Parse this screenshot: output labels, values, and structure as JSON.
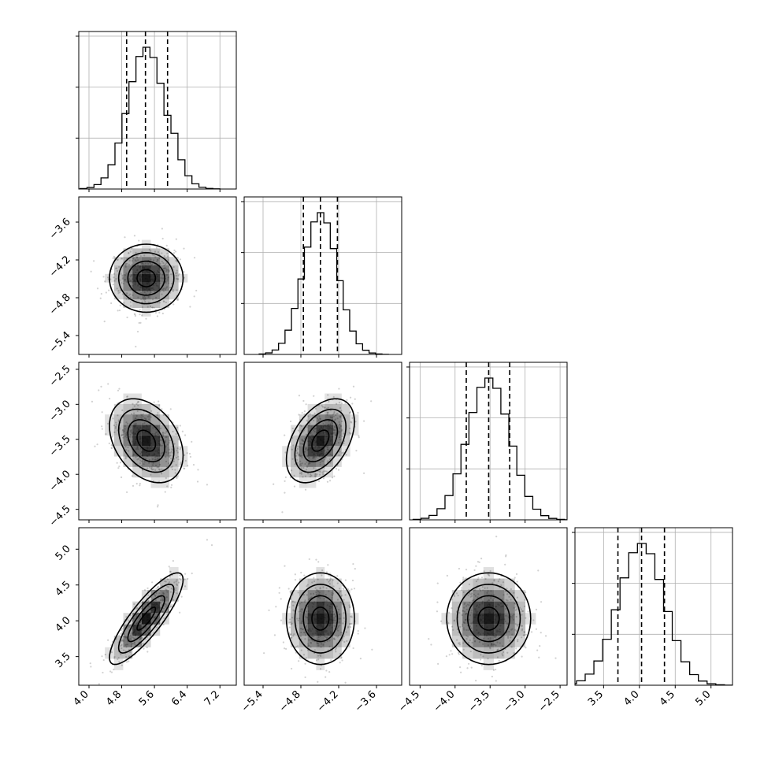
{
  "chart_data": {
    "type": "corner",
    "title": "",
    "parameters": [
      {
        "index": 0,
        "range": [
          3.75,
          7.6
        ],
        "ticks": [
          4.0,
          4.8,
          5.6,
          6.4,
          7.2
        ],
        "tick_labels": [
          "4.0",
          "4.8",
          "5.6",
          "6.4",
          "7.2"
        ],
        "quantiles": [
          4.92,
          5.38,
          5.92
        ],
        "mean": 5.4,
        "sd": 0.45
      },
      {
        "index": 1,
        "range": [
          -5.7,
          -3.2
        ],
        "ticks": [
          -5.4,
          -4.8,
          -4.2,
          -3.6
        ],
        "tick_labels": [
          "−5.4",
          "−4.8",
          "−4.2",
          "−3.6"
        ],
        "quantiles": [
          -4.76,
          -4.49,
          -4.22
        ],
        "mean": -4.49,
        "sd": 0.27
      },
      {
        "index": 2,
        "range": [
          -4.65,
          -2.4
        ],
        "ticks": [
          -4.5,
          -4.0,
          -3.5,
          -3.0,
          -2.5
        ],
        "tick_labels": [
          "−4.5",
          "−4.0",
          "−3.5",
          "−3.0",
          "−2.5"
        ],
        "quantiles": [
          -3.84,
          -3.52,
          -3.22
        ],
        "mean": -3.52,
        "sd": 0.3
      },
      {
        "index": 3,
        "range": [
          3.1,
          5.3
        ],
        "ticks": [
          3.5,
          4.0,
          4.5,
          5.0
        ],
        "tick_labels": [
          "3.5",
          "4.0",
          "4.5",
          "5.0"
        ],
        "quantiles": [
          3.7,
          4.03,
          4.35
        ],
        "mean": 4.03,
        "sd": 0.32
      }
    ],
    "correlations": {
      "1-0": 0.0,
      "2-0": -0.35,
      "2-1": 0.45,
      "3-0": 0.85,
      "3-1": 0.0,
      "3-2": 0.0
    },
    "quantile_levels": [
      0.16,
      0.5,
      0.84
    ],
    "grid": true,
    "legend": "none",
    "colors": {
      "line": "#000000",
      "points": "#9a9a9a",
      "density": "#000000",
      "grid": "#b0b0b0"
    }
  }
}
